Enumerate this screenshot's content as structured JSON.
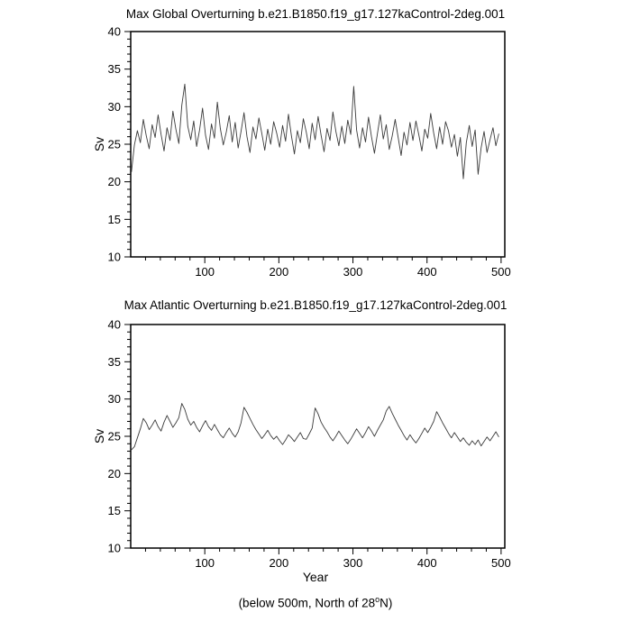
{
  "caption": {
    "prefix": "(below 500m, North of 28",
    "sup": "o",
    "suffix": "N)"
  },
  "chart_data": [
    {
      "type": "line",
      "title": "Max Global Overturning b.e21.B1850.f19_g17.127kaControl-2deg.001",
      "ylabel": "Sv",
      "xlabel": "",
      "xlim": [
        0,
        505
      ],
      "ylim": [
        10,
        40
      ],
      "xticks": [
        100,
        200,
        300,
        400,
        500
      ],
      "yticks": [
        10,
        15,
        20,
        25,
        30,
        35,
        40
      ],
      "xminor_step": 20,
      "yminor_step": 1,
      "grid": false,
      "line_color": "#3a3a3a",
      "x_start": 1,
      "x_step": 4,
      "values": [
        21.3,
        24.9,
        26.8,
        25.2,
        28.3,
        26.1,
        24.4,
        27.6,
        25.9,
        28.9,
        26.3,
        24.1,
        27.2,
        25.5,
        29.4,
        27.0,
        25.1,
        30.2,
        33.0,
        27.4,
        25.6,
        28.1,
        24.7,
        26.9,
        29.8,
        26.2,
        24.3,
        27.7,
        25.8,
        30.6,
        27.1,
        24.9,
        26.6,
        28.8,
        25.3,
        27.9,
        24.5,
        26.7,
        29.2,
        26.0,
        23.9,
        27.3,
        25.7,
        28.5,
        26.4,
        24.2,
        27.0,
        25.0,
        28.0,
        26.5,
        24.6,
        27.5,
        25.4,
        29.0,
        26.1,
        23.7,
        26.8,
        25.2,
        28.4,
        26.6,
        24.4,
        27.8,
        25.6,
        28.7,
        26.2,
        24.0,
        27.1,
        25.5,
        29.3,
        26.7,
        24.8,
        27.4,
        25.1,
        28.2,
        26.3,
        32.7,
        26.9,
        24.5,
        27.2,
        25.3,
        28.6,
        26.0,
        23.8,
        26.4,
        28.9,
        25.7,
        27.6,
        24.3,
        26.1,
        28.3,
        25.9,
        23.5,
        26.6,
        24.9,
        27.9,
        25.5,
        28.1,
        26.2,
        24.1,
        27.0,
        25.8,
        29.1,
        26.5,
        24.4,
        27.3,
        25.0,
        28.0,
        26.8,
        24.6,
        26.3,
        23.4,
        25.9,
        20.4,
        25.2,
        27.5,
        24.7,
        26.9,
        21.0,
        24.5,
        26.7,
        23.9,
        25.6,
        27.2,
        24.8,
        26.4
      ]
    },
    {
      "type": "line",
      "title": "Max Atlantic Overturning b.e21.B1850.f19_g17.127kaControl-2deg.001",
      "ylabel": "Sv",
      "xlabel": "Year",
      "xlim": [
        0,
        505
      ],
      "ylim": [
        10,
        40
      ],
      "xticks": [
        100,
        200,
        300,
        400,
        500
      ],
      "yticks": [
        10,
        15,
        20,
        25,
        30,
        35,
        40
      ],
      "xminor_step": 20,
      "yminor_step": 1,
      "grid": false,
      "line_color": "#3a3a3a",
      "x_start": 1,
      "x_step": 4,
      "values": [
        23.2,
        23.6,
        24.8,
        26.0,
        27.4,
        26.8,
        25.9,
        26.5,
        27.2,
        26.3,
        25.7,
        26.9,
        27.8,
        27.0,
        26.2,
        26.8,
        27.5,
        29.4,
        28.6,
        27.3,
        26.5,
        27.0,
        26.2,
        25.6,
        26.4,
        27.1,
        26.3,
        25.8,
        26.6,
        25.9,
        25.2,
        24.8,
        25.5,
        26.1,
        25.4,
        24.9,
        25.6,
        26.8,
        28.9,
        28.2,
        27.4,
        26.6,
        25.9,
        25.3,
        24.7,
        25.2,
        25.8,
        25.1,
        24.6,
        25.0,
        24.4,
        23.9,
        24.5,
        25.2,
        24.8,
        24.3,
        24.9,
        25.5,
        24.7,
        24.6,
        25.3,
        26.1,
        28.8,
        28.0,
        26.9,
        26.2,
        25.6,
        24.9,
        24.4,
        25.0,
        25.7,
        25.1,
        24.5,
        24.0,
        24.6,
        25.3,
        26.0,
        25.4,
        24.8,
        25.5,
        26.3,
        25.7,
        25.0,
        25.8,
        26.5,
        27.2,
        28.4,
        29.0,
        28.1,
        27.3,
        26.5,
        25.8,
        25.1,
        24.5,
        25.2,
        24.6,
        24.1,
        24.7,
        25.4,
        26.1,
        25.5,
        26.2,
        27.0,
        28.3,
        27.6,
        26.8,
        26.1,
        25.4,
        24.8,
        25.5,
        24.9,
        24.3,
        24.8,
        24.2,
        23.8,
        24.4,
        23.9,
        24.5,
        23.7,
        24.3,
        24.9,
        24.4,
        25.0,
        25.6,
        24.9
      ]
    }
  ]
}
